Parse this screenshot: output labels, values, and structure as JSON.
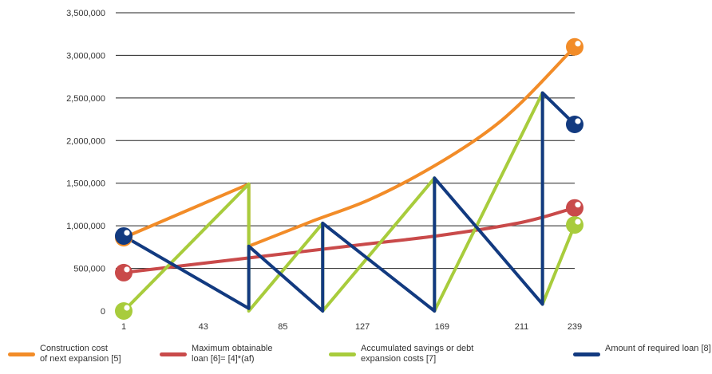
{
  "chart_data": {
    "type": "line",
    "x_ticks": [
      1,
      43,
      85,
      127,
      169,
      211,
      239
    ],
    "y_ticks": [
      "0",
      "500,000",
      "1,000,000",
      "1,500,000",
      "2,000,000",
      "2,500,000",
      "3,000,000",
      "3,500,000"
    ],
    "xlim": [
      1,
      239
    ],
    "ylim": [
      0,
      3500000
    ],
    "grid": true,
    "legend_position": "bottom",
    "series": [
      {
        "name": "Construction cost of next expansion [5]",
        "name_lines": [
          "Construction cost",
          "of next expansion [5]"
        ],
        "color": "#f28c28",
        "x": [
          1,
          67,
          67,
          100,
          130,
          160,
          190,
          211,
          239
        ],
        "y": [
          860000,
          1490000,
          760000,
          1050000,
          1300000,
          1640000,
          2060000,
          2450000,
          3100000
        ],
        "smooth": true
      },
      {
        "name": "Maximum obtainable loan [6]= [4]*(af)",
        "name_lines": [
          "Maximum obtainable",
          "loan [6]= [4]*(af)"
        ],
        "color": "#c94a4a",
        "x": [
          1,
          43,
          85,
          127,
          169,
          211,
          239
        ],
        "y": [
          450000,
          560000,
          670000,
          780000,
          890000,
          1040000,
          1210000
        ],
        "smooth": true
      },
      {
        "name": "Accumulated savings or debt expansion costs [7]",
        "name_lines": [
          "Accumulated savings or debt",
          "expansion costs [7]"
        ],
        "color": "#a8cc3c",
        "x": [
          1,
          67,
          67,
          106,
          106,
          165,
          165,
          222,
          222,
          239
        ],
        "y": [
          0,
          1490000,
          0,
          1030000,
          0,
          1560000,
          0,
          2560000,
          80000,
          1010000
        ],
        "smooth": false
      },
      {
        "name": "Amount of required loan [8]",
        "name_lines": [
          "Amount of required loan [8]"
        ],
        "color": "#123a80",
        "x": [
          1,
          67,
          67,
          106,
          106,
          165,
          165,
          222,
          222,
          239
        ],
        "y": [
          880000,
          30000,
          760000,
          0,
          1030000,
          0,
          1560000,
          80000,
          2560000,
          2190000
        ],
        "smooth": false
      }
    ],
    "end_markers": [
      {
        "series": 0,
        "x": 1,
        "y": 860000
      },
      {
        "series": 0,
        "x": 239,
        "y": 3100000
      },
      {
        "series": 1,
        "x": 1,
        "y": 450000
      },
      {
        "series": 1,
        "x": 239,
        "y": 1210000
      },
      {
        "series": 2,
        "x": 1,
        "y": 0
      },
      {
        "series": 2,
        "x": 239,
        "y": 1010000
      },
      {
        "series": 3,
        "x": 1,
        "y": 880000
      },
      {
        "series": 3,
        "x": 239,
        "y": 2190000
      }
    ]
  }
}
